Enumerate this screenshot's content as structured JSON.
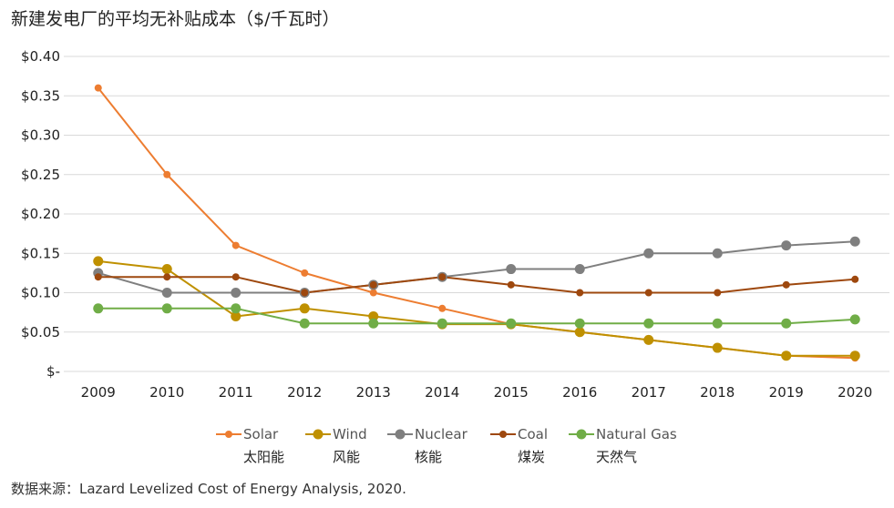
{
  "chart_data": {
    "type": "line",
    "title": "新建发电厂的平均无补贴成本（$/千瓦时）",
    "source": "数据来源：Lazard Levelized Cost of Energy Analysis, 2020.",
    "x": [
      "2009",
      "2010",
      "2011",
      "2012",
      "2013",
      "2014",
      "2015",
      "2016",
      "2017",
      "2018",
      "2019",
      "2020"
    ],
    "ylim": [
      0,
      0.4
    ],
    "yticks": [
      {
        "value": 0.0,
        "label": "$-"
      },
      {
        "value": 0.05,
        "label": "$0.05"
      },
      {
        "value": 0.1,
        "label": "$0.10"
      },
      {
        "value": 0.15,
        "label": "$0.15"
      },
      {
        "value": 0.2,
        "label": "$0.20"
      },
      {
        "value": 0.25,
        "label": "$0.25"
      },
      {
        "value": 0.3,
        "label": "$0.30"
      },
      {
        "value": 0.35,
        "label": "$0.35"
      },
      {
        "value": 0.4,
        "label": "$0.40"
      }
    ],
    "grid": true,
    "legend_position": "bottom",
    "series": [
      {
        "name": "Solar",
        "name_cn": "太阳能",
        "color": "#ED7D31",
        "marker": "small",
        "values": [
          0.36,
          0.25,
          0.16,
          0.125,
          0.1,
          0.08,
          0.06,
          0.05,
          0.04,
          0.03,
          0.02,
          0.017
        ]
      },
      {
        "name": "Wind",
        "name_cn": "风能",
        "color": "#BF9000",
        "marker": "large",
        "values": [
          0.14,
          0.13,
          0.07,
          0.08,
          0.07,
          0.06,
          0.06,
          0.05,
          0.04,
          0.03,
          0.02,
          0.02
        ]
      },
      {
        "name": "Nuclear",
        "name_cn": "核能",
        "color": "#7F7F7F",
        "marker": "large",
        "values": [
          0.125,
          0.1,
          0.1,
          0.1,
          0.11,
          0.12,
          0.13,
          0.13,
          0.15,
          0.15,
          0.16,
          0.165
        ]
      },
      {
        "name": "Coal",
        "name_cn": "煤炭",
        "color": "#9E480E",
        "marker": "small",
        "values": [
          0.12,
          0.12,
          0.12,
          0.1,
          0.11,
          0.12,
          0.11,
          0.1,
          0.1,
          0.1,
          0.11,
          0.117
        ]
      },
      {
        "name": "Natural Gas",
        "name_cn": "天然气",
        "color": "#70AD47",
        "marker": "large",
        "values": [
          0.08,
          0.08,
          0.08,
          0.061,
          0.061,
          0.061,
          0.061,
          0.061,
          0.061,
          0.061,
          0.061,
          0.066
        ]
      }
    ]
  }
}
